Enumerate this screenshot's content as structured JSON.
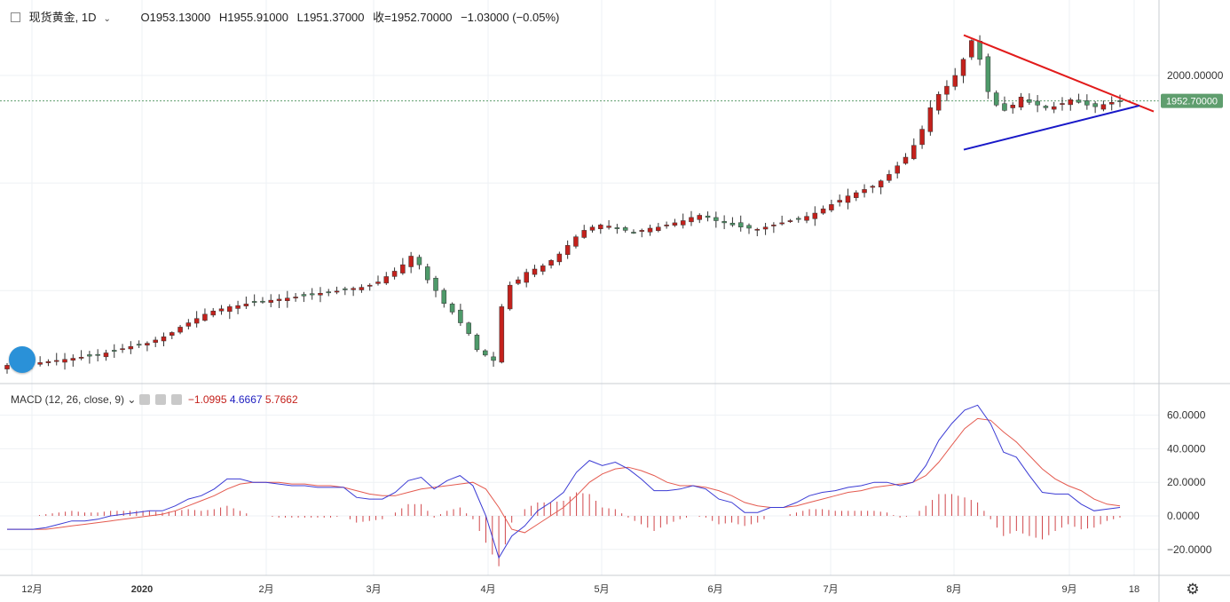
{
  "header": {
    "symbol": "现货黄金, 1D",
    "open": "O1953.13000",
    "high": "H1955.91000",
    "low": "L1951.37000",
    "close": "收=1952.70000",
    "change": "−1.03000 (−0.05%)"
  },
  "macd_legend": {
    "label": "MACD (12, 26, close, 9)",
    "hist": "−1.0995",
    "macd": "4.6667",
    "signal": "5.7662"
  },
  "price_tag": "1952.70000",
  "colors": {
    "up": "#c4211c",
    "down": "#4e9a6a",
    "macd_line": "#3b3bd4",
    "signal_line": "#e45a4f",
    "hist": "#d0464a",
    "trend_red": "#e21b1b",
    "trend_blue": "#1818c8",
    "grid": "#eef1f4",
    "tag_bg": "#5f9e6e"
  },
  "chart_data": [
    {
      "type": "candlestick",
      "title": "现货黄金, 1D",
      "x_ticks": [
        "12月",
        "2020",
        "2月",
        "3月",
        "4月",
        "5月",
        "6月",
        "7月",
        "8月",
        "9月",
        "18"
      ],
      "y_ticks": [
        "2000.00000"
      ],
      "last_price": 1952.7,
      "series": [
        {
          "name": "price",
          "values": [
            1461,
            1462,
            1463,
            1464,
            1466,
            1468,
            1470,
            1472,
            1474,
            1476,
            1478,
            1480,
            1484,
            1488,
            1492,
            1496,
            1499,
            1502,
            1508,
            1514,
            1522,
            1532,
            1540,
            1548,
            1556,
            1562,
            1566,
            1570,
            1572,
            1575,
            1578,
            1580,
            1582,
            1584,
            1586,
            1588,
            1590,
            1592,
            1595,
            1597,
            1599,
            1602,
            1604,
            1606,
            1610,
            1616,
            1626,
            1636,
            1648,
            1664,
            1648,
            1620,
            1600,
            1576,
            1560,
            1540,
            1520,
            1490,
            1480,
            1470,
            1570,
            1610,
            1620,
            1634,
            1640,
            1646,
            1656,
            1668,
            1684,
            1700,
            1712,
            1718,
            1722,
            1720,
            1716,
            1712,
            1708,
            1712,
            1716,
            1718,
            1722,
            1726,
            1730,
            1736,
            1740,
            1736,
            1730,
            1726,
            1722,
            1718,
            1716,
            1714,
            1718,
            1722,
            1726,
            1730,
            1734,
            1738,
            1744,
            1752,
            1760,
            1768,
            1776,
            1782,
            1788,
            1794,
            1804,
            1816,
            1832,
            1848,
            1870,
            1900,
            1940,
            1965,
            1980,
            2000,
            2030,
            2065,
            2030,
            1970,
            1945,
            1935,
            1945,
            1960,
            1950,
            1945,
            1940,
            1942,
            1948,
            1955,
            1950,
            1945,
            1942,
            1946,
            1950,
            1953
          ]
        },
        {
          "name": "trendline-red",
          "points": [
            [
              "2020-08-07",
              2075
            ],
            [
              "2020-09-18",
              1940
            ]
          ]
        },
        {
          "name": "trendline-blue",
          "points": [
            [
              "2020-08-11",
              1862
            ],
            [
              "2020-09-18",
              1944
            ]
          ]
        }
      ]
    },
    {
      "type": "line",
      "title": "MACD (12, 26, close, 9)",
      "y_ticks": [
        "60.0000",
        "40.0000",
        "20.0000",
        "0.0000",
        "−20.0000"
      ],
      "ylim": [
        -27,
        75
      ],
      "series": [
        {
          "name": "MACD",
          "values": [
            -8,
            -8,
            -8,
            -7,
            -5,
            -3,
            -3,
            -2,
            0,
            1,
            2,
            3,
            3,
            6,
            10,
            12,
            16,
            22,
            22,
            20,
            20,
            19,
            18,
            18,
            17,
            17,
            17,
            11,
            10,
            10,
            14,
            21,
            23,
            16,
            21,
            24,
            18,
            0,
            -25,
            -12,
            -6,
            3,
            8,
            14,
            26,
            33,
            30,
            32,
            28,
            22,
            15,
            15,
            16,
            18,
            16,
            10,
            8,
            2,
            2,
            5,
            5,
            8,
            12,
            14,
            15,
            17,
            18,
            20,
            20,
            18,
            20,
            30,
            45,
            55,
            63,
            66,
            55,
            38,
            35,
            24,
            14,
            13,
            13,
            7,
            3,
            4,
            5
          ],
          "x_index": [
            0,
            2,
            4,
            6,
            8,
            10,
            12,
            14,
            16,
            18,
            20,
            22,
            24,
            26,
            28,
            30,
            32,
            34,
            36,
            38,
            40,
            42,
            44,
            46,
            48,
            50,
            52,
            54,
            56,
            58,
            60,
            62,
            64,
            66,
            68,
            70,
            72,
            74,
            76,
            78,
            80,
            82,
            84,
            86,
            88,
            90,
            92,
            94,
            96,
            98,
            100,
            102,
            104,
            106,
            108,
            110,
            112,
            114,
            116,
            118,
            120,
            122,
            124,
            126,
            128,
            130,
            132,
            134,
            136,
            138,
            140,
            142,
            144,
            146,
            148,
            150,
            152,
            154,
            156,
            158,
            160,
            162,
            164,
            166,
            168,
            170,
            172
          ]
        },
        {
          "name": "signal",
          "values": [
            -8,
            -8,
            -8,
            -8,
            -7,
            -6,
            -5,
            -4,
            -3,
            -2,
            -1,
            0,
            1,
            3,
            6,
            9,
            12,
            16,
            19,
            20,
            20,
            20,
            19,
            19,
            18,
            18,
            17,
            15,
            13,
            12,
            12,
            14,
            16,
            17,
            18,
            19,
            20,
            16,
            5,
            -8,
            -10,
            -5,
            0,
            5,
            12,
            20,
            25,
            28,
            29,
            27,
            24,
            20,
            18,
            18,
            17,
            15,
            12,
            8,
            6,
            5,
            5,
            6,
            8,
            10,
            12,
            14,
            15,
            17,
            18,
            19,
            20,
            24,
            32,
            42,
            52,
            58,
            57,
            50,
            44,
            36,
            28,
            22,
            18,
            15,
            10,
            7,
            6
          ],
          "x_index": [
            0,
            2,
            4,
            6,
            8,
            10,
            12,
            14,
            16,
            18,
            20,
            22,
            24,
            26,
            28,
            30,
            32,
            34,
            36,
            38,
            40,
            42,
            44,
            46,
            48,
            50,
            52,
            54,
            56,
            58,
            60,
            62,
            64,
            66,
            68,
            70,
            72,
            74,
            76,
            78,
            80,
            82,
            84,
            86,
            88,
            90,
            92,
            94,
            96,
            98,
            100,
            102,
            104,
            106,
            108,
            110,
            112,
            114,
            116,
            118,
            120,
            122,
            124,
            126,
            128,
            130,
            132,
            134,
            136,
            138,
            140,
            142,
            144,
            146,
            148,
            150,
            152,
            154,
            156,
            158,
            160,
            162,
            164,
            166,
            168,
            170,
            172
          ]
        }
      ]
    }
  ]
}
